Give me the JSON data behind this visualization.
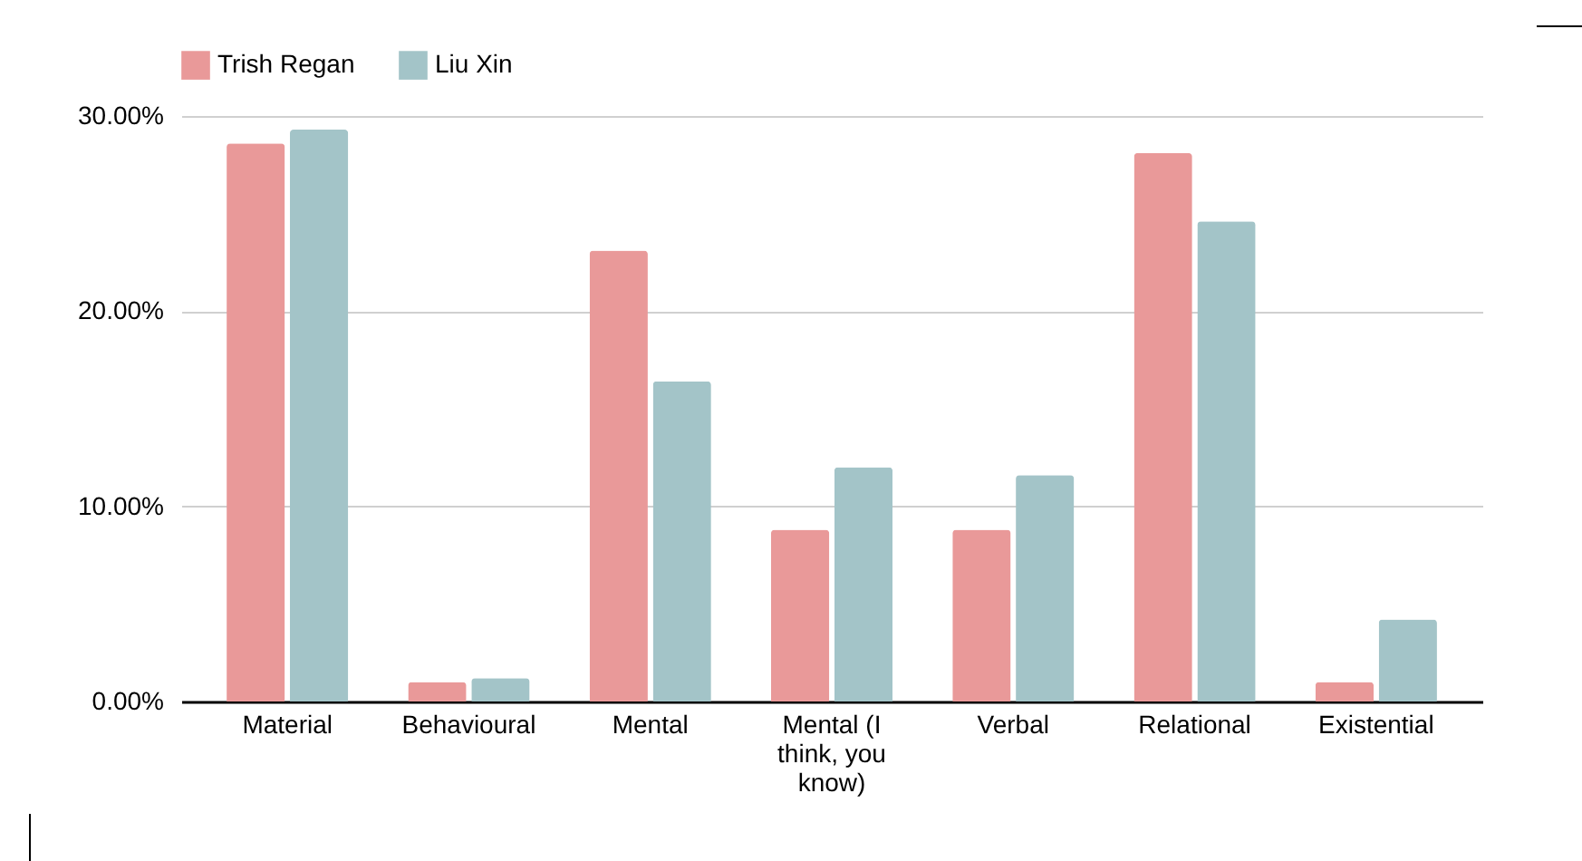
{
  "chart_data": {
    "type": "bar",
    "categories": [
      "Material",
      "Behavioural",
      "Mental",
      "Mental (I think, you know)",
      "Verbal",
      "Relational",
      "Existential"
    ],
    "series": [
      {
        "name": "Trish Regan",
        "color": "#e99999",
        "values": [
          28.6,
          1.0,
          23.1,
          8.8,
          8.8,
          28.1,
          1.0
        ]
      },
      {
        "name": "Liu Xin",
        "color": "#a3c4c8",
        "values": [
          29.3,
          1.2,
          16.4,
          12.0,
          11.6,
          24.6,
          4.2
        ]
      }
    ],
    "ylim": [
      0,
      30
    ],
    "yticks": [
      {
        "value": 0,
        "label": "0.00%"
      },
      {
        "value": 10,
        "label": "10.00%"
      },
      {
        "value": 20,
        "label": "20.00%"
      },
      {
        "value": 30,
        "label": "30.00%"
      }
    ],
    "grid": "y",
    "legend": "top"
  }
}
